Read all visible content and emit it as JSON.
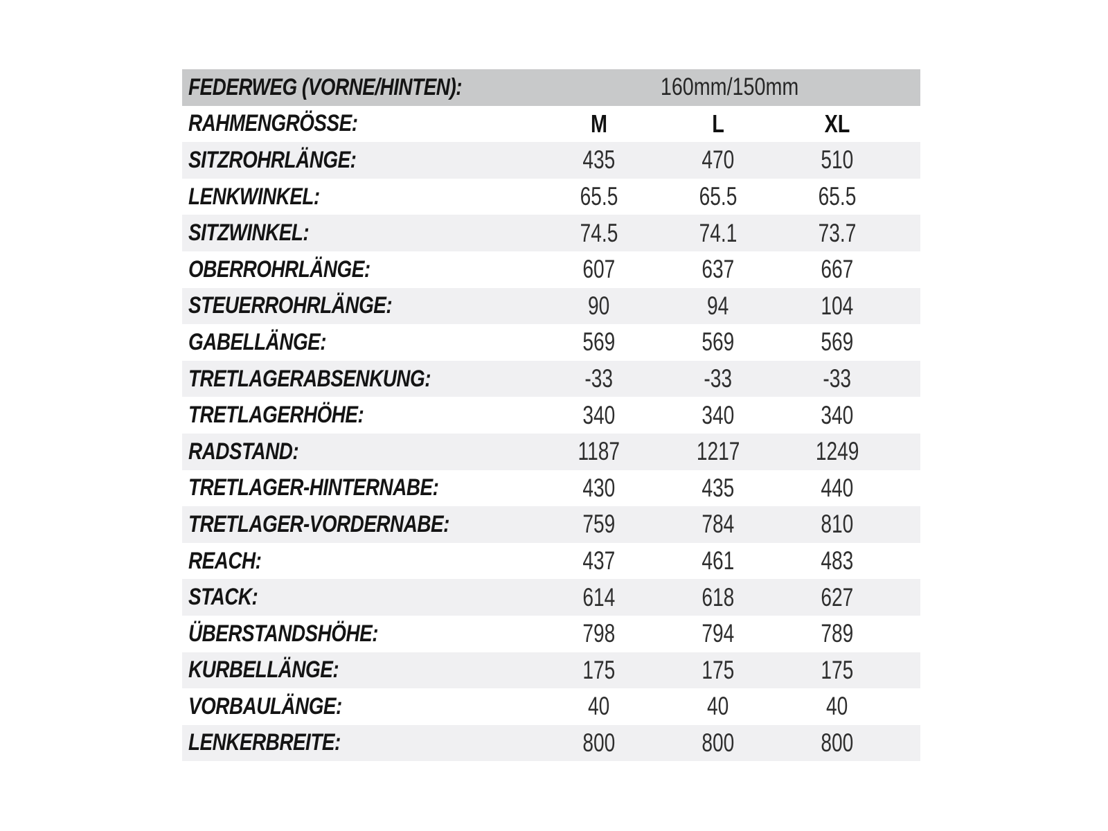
{
  "colors": {
    "header_band_bg": "#c8c9ca",
    "alt_row_bg": "#f0f0f2",
    "row_bg": "#ffffff",
    "label_text": "#141414",
    "value_text": "#2e2e2e"
  },
  "chart_data": {
    "type": "table",
    "title": "",
    "travel_row": {
      "label": "FEDERWEG (VORNE/HINTEN):",
      "value": "160mm/150mm"
    },
    "size_row": {
      "label": "RAHMENGRÖSSE:",
      "columns": [
        "M",
        "L",
        "XL"
      ]
    },
    "rows": [
      {
        "label": "SITZROHRLÄNGE:",
        "values": [
          "435",
          "470",
          "510"
        ]
      },
      {
        "label": "LENKWINKEL:",
        "values": [
          "65.5",
          "65.5",
          "65.5"
        ]
      },
      {
        "label": "SITZWINKEL:",
        "values": [
          "74.5",
          "74.1",
          "73.7"
        ]
      },
      {
        "label": "OBERROHRLÄNGE:",
        "values": [
          "607",
          "637",
          "667"
        ]
      },
      {
        "label": "STEUERROHRLÄNGE:",
        "values": [
          "90",
          "94",
          "104"
        ]
      },
      {
        "label": "GABELLÄNGE:",
        "values": [
          "569",
          "569",
          "569"
        ]
      },
      {
        "label": "TRETLAGERABSENKUNG:",
        "values": [
          "-33",
          "-33",
          "-33"
        ]
      },
      {
        "label": "TRETLAGERHÖHE:",
        "values": [
          "340",
          "340",
          "340"
        ]
      },
      {
        "label": "RADSTAND:",
        "values": [
          "1187",
          "1217",
          "1249"
        ]
      },
      {
        "label": "TRETLAGER-HINTERNABE:",
        "values": [
          "430",
          "435",
          "440"
        ]
      },
      {
        "label": "TRETLAGER-VORDERNABE:",
        "values": [
          "759",
          "784",
          "810"
        ]
      },
      {
        "label": "REACH:",
        "values": [
          "437",
          "461",
          "483"
        ]
      },
      {
        "label": "STACK:",
        "values": [
          "614",
          "618",
          "627"
        ]
      },
      {
        "label": "ÜBERSTANDSHÖHE:",
        "values": [
          "798",
          "794",
          "789"
        ]
      },
      {
        "label": "KURBELLÄNGE:",
        "values": [
          "175",
          "175",
          "175"
        ]
      },
      {
        "label": "VORBAULÄNGE:",
        "values": [
          "40",
          "40",
          "40"
        ]
      },
      {
        "label": "LENKERBREITE:",
        "values": [
          "800",
          "800",
          "800"
        ]
      }
    ]
  }
}
